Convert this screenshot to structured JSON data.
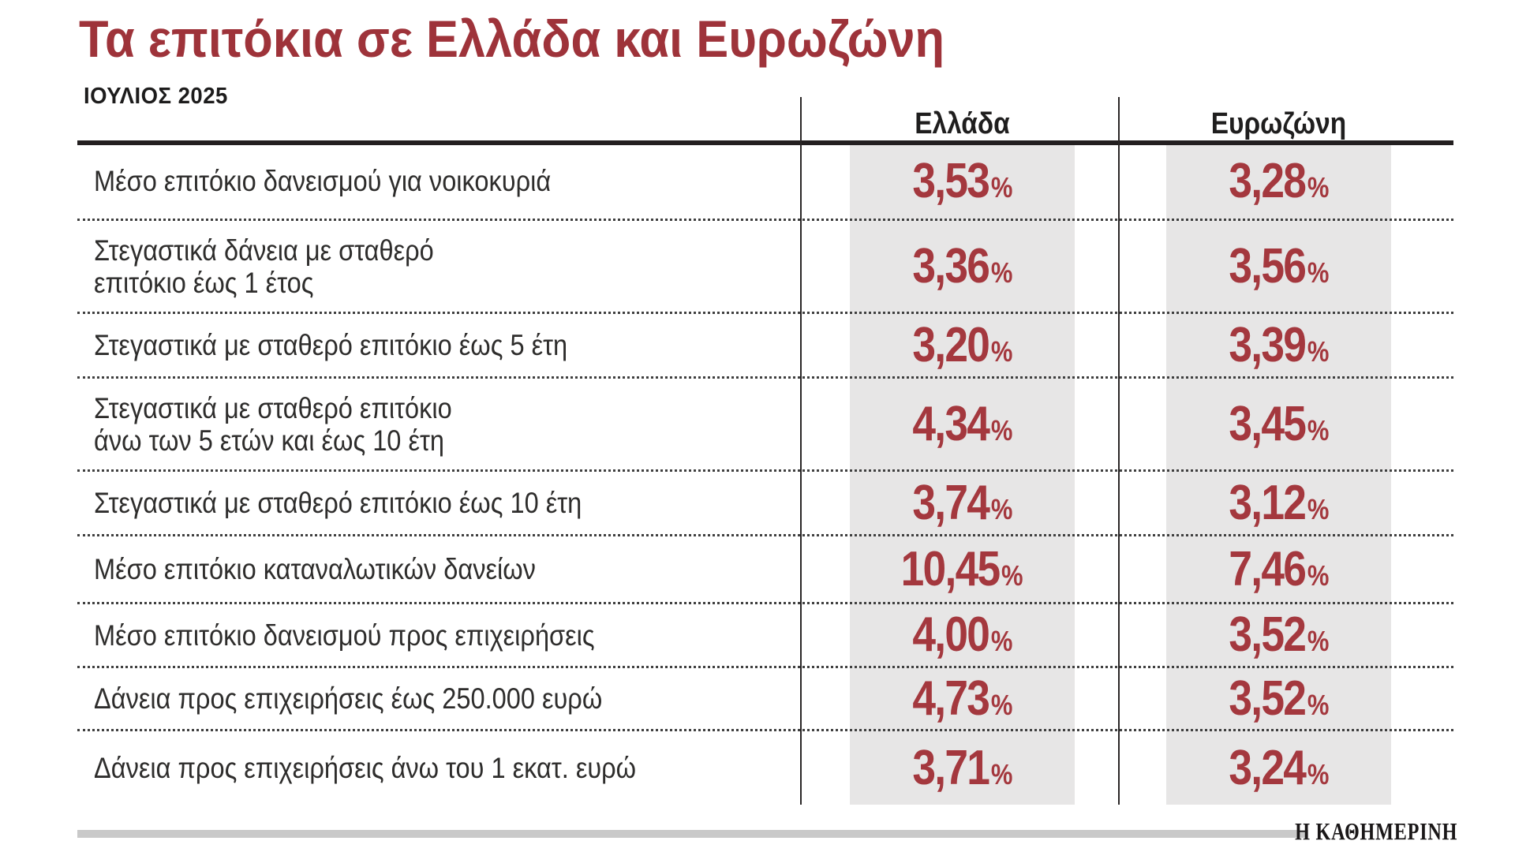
{
  "title": "Τα επιτόκια σε Ελλάδα και Ευρωζώνη",
  "date_label": "ΙΟΥΛΙΟΣ 2025",
  "source_logo": "Η ΚΑΘΗΜΕΡΙΝΗ",
  "colors": {
    "title_red": "#9e333a",
    "value_red": "#a4383e",
    "shade_gray": "#e7e6e6",
    "footer_bar_gray": "#c9c9c9",
    "line_black": "#231f20"
  },
  "chart_data": {
    "type": "table",
    "title": "Τα επιτόκια σε Ελλάδα και Ευρωζώνη",
    "subtitle": "ΙΟΥΛΙΟΣ 2025",
    "columns": [
      "Ελλάδα",
      "Ευρωζώνη"
    ],
    "unit": "%",
    "rows": [
      {
        "label": "Μέσο επιτόκιο δανεισμού για νοικοκυριά",
        "values": [
          "3,53",
          "3,28"
        ]
      },
      {
        "label": "Στεγαστικά δάνεια με σταθερό\nεπιτόκιο έως 1 έτος",
        "values": [
          "3,36",
          "3,56"
        ]
      },
      {
        "label": "Στεγαστικά με σταθερό επιτόκιο έως 5 έτη",
        "values": [
          "3,20",
          "3,39"
        ]
      },
      {
        "label": "Στεγαστικά με σταθερό επιτόκιο\nάνω των 5 ετών και έως 10 έτη",
        "values": [
          "4,34",
          "3,45"
        ]
      },
      {
        "label": "Στεγαστικά με σταθερό επιτόκιο έως 10 έτη",
        "values": [
          "3,74",
          "3,12"
        ]
      },
      {
        "label": "Μέσο επιτόκιο καταναλωτικών δανείων",
        "values": [
          "10,45",
          "7,46"
        ]
      },
      {
        "label": "Μέσο επιτόκιο δανεισμού προς επιχειρήσεις",
        "values": [
          "4,00",
          "3,52"
        ]
      },
      {
        "label": "Δάνεια προς επιχειρήσεις έως 250.000 ευρώ",
        "values": [
          "4,73",
          "3,52"
        ]
      },
      {
        "label": "Δάνεια προς επιχειρήσεις άνω του 1 εκατ. ευρώ",
        "values": [
          "3,71",
          "3,24"
        ]
      }
    ],
    "numeric_values": {
      "greece": [
        3.53,
        3.36,
        3.2,
        4.34,
        3.74,
        10.45,
        4.0,
        4.73,
        3.71
      ],
      "eurozone": [
        3.28,
        3.56,
        3.39,
        3.45,
        3.12,
        7.46,
        3.52,
        3.52,
        3.24
      ]
    }
  }
}
